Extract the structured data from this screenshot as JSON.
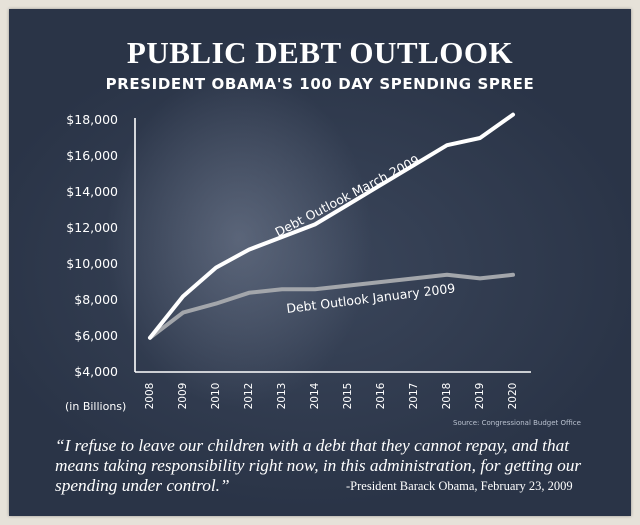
{
  "colors": {
    "background": "#2a3447",
    "march_line": "#ffffff",
    "january_line": "#a3a6ab",
    "text": "#ffffff"
  },
  "header": {
    "title": "PUBLIC DEBT OUTLOOK",
    "subtitle": "PRESIDENT OBAMA'S 100 DAY SPENDING SPREE"
  },
  "footer": {
    "quote": "“I refuse to leave our children with a debt that they cannot repay, and that means taking responsibility right now, in this administration, for getting our spending under control.”",
    "attribution": "-President Barack Obama, February 23, 2009"
  },
  "chart_data": {
    "type": "line",
    "title": "PUBLIC DEBT OUTLOOK",
    "subtitle": "PRESIDENT OBAMA'S 100 DAY SPENDING SPREE",
    "xlabel": "",
    "ylabel": "(in Billions)",
    "source": "Source: Congressional Budget Office",
    "x": [
      2008,
      2009,
      2010,
      2012,
      2013,
      2014,
      2015,
      2016,
      2017,
      2018,
      2019,
      2020
    ],
    "x_tick_labels": [
      "2008",
      "2009",
      "2010",
      "2012",
      "2013",
      "2014",
      "2015",
      "2016",
      "2017",
      "2018",
      "2019",
      "2020"
    ],
    "ylim": [
      4000,
      18000
    ],
    "y_ticks": [
      4000,
      6000,
      8000,
      10000,
      12000,
      14000,
      16000,
      18000
    ],
    "y_tick_labels": [
      "$4,000",
      "$6,000",
      "$8,000",
      "$10,000",
      "$12,000",
      "$14,000",
      "$16,000",
      "$18,000"
    ],
    "grid": false,
    "legend": "inline labels on lines",
    "series": [
      {
        "name": "Debt Outlook March 2009",
        "values": [
          5900,
          8200,
          9800,
          10800,
          11500,
          12200,
          13300,
          14400,
          15500,
          16600,
          17000,
          18300
        ]
      },
      {
        "name": "Debt Outlook January 2009",
        "values": [
          5900,
          7300,
          7800,
          8400,
          8600,
          8600,
          8800,
          9000,
          9200,
          9400,
          9200,
          9400
        ]
      }
    ]
  }
}
